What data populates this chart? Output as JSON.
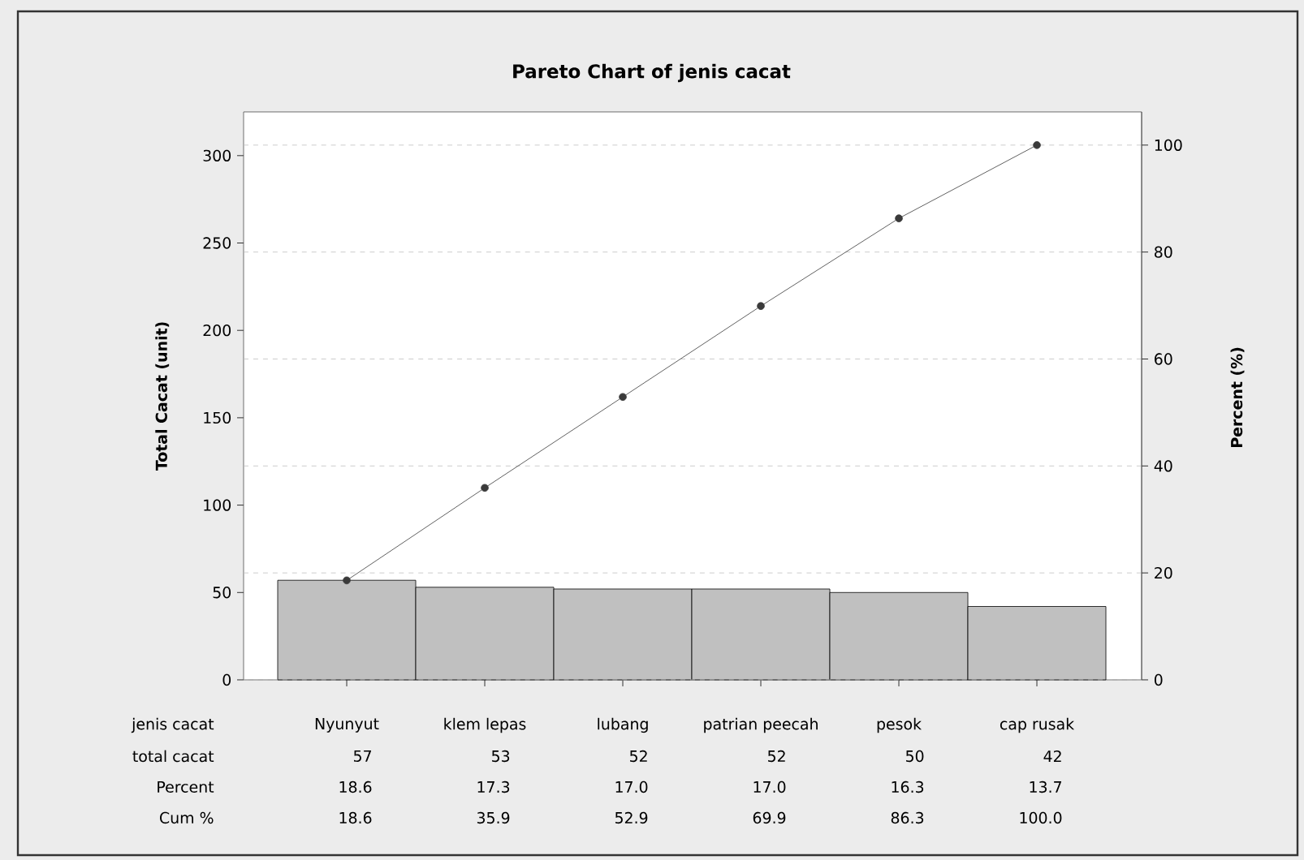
{
  "chart_data": {
    "type": "bar",
    "title": "Pareto Chart of jenis cacat",
    "xlabel": "jenis cacat",
    "ylabel": "Total Cacat (unit)",
    "y2label": "Percent (%)",
    "categories": [
      "Nyunyut",
      "klem lepas",
      "lubang",
      "patrian peecah",
      "pesok",
      "cap rusak"
    ],
    "series": [
      {
        "color": "#c0c0c0",
        "values": [
          57,
          53,
          52,
          52,
          50,
          42
        ],
        "value_labels": [
          "57",
          "53",
          "52",
          "52",
          "50",
          "42"
        ]
      },
      {
        "type": "line",
        "axis": "y2",
        "color": "#3a3a3a",
        "marker": "circle",
        "values": [
          18.6,
          35.9,
          52.9,
          69.9,
          86.3,
          100.0
        ],
        "value_labels": [
          "18.6",
          "35.9",
          "52.9",
          "69.9",
          "86.3",
          "100.0"
        ]
      }
    ],
    "ylim": [
      0,
      325
    ],
    "yticks": [
      0,
      50,
      100,
      150,
      200,
      250,
      300
    ],
    "y2lim": [
      0,
      106.2
    ],
    "y2ticks": [
      0,
      20,
      40,
      60,
      80,
      100
    ],
    "grid": "y2",
    "annotations": [
      "total cacat",
      "Percent",
      "Cum %",
      "18.6",
      "17.3",
      "17.0",
      "17.0",
      "16.3",
      "13.7"
    ]
  }
}
